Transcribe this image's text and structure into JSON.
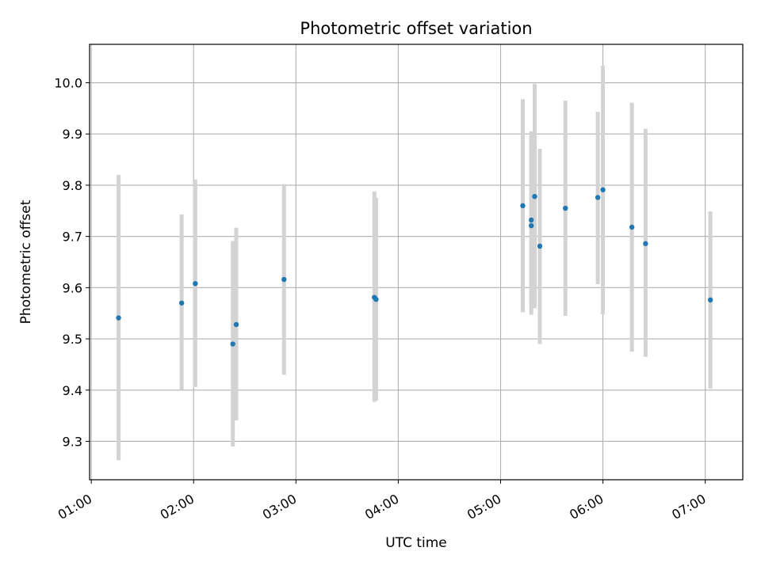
{
  "chart_data": {
    "type": "scatter",
    "title": "Photometric offset variation",
    "xlabel": "UTC time",
    "ylabel": "Photometric offset",
    "x_unit": "UTC time (HH:MM)",
    "xlim": [
      "00:59",
      "07:22"
    ],
    "ylim": [
      9.225,
      10.075
    ],
    "x_ticks": [
      "01:00",
      "02:00",
      "03:00",
      "04:00",
      "05:00",
      "06:00",
      "07:00"
    ],
    "y_ticks": [
      "9.3",
      "9.4",
      "9.5",
      "9.6",
      "9.7",
      "9.8",
      "9.9",
      "10.0"
    ],
    "grid": true,
    "point_color": "#1f77b4",
    "errorbar_color": "#d3d3d3",
    "points": [
      {
        "x": "01:16",
        "y": 9.541,
        "low": 9.263,
        "high": 9.82
      },
      {
        "x": "01:53",
        "y": 9.57,
        "low": 9.401,
        "high": 9.743
      },
      {
        "x": "02:01",
        "y": 9.608,
        "low": 9.406,
        "high": 9.811
      },
      {
        "x": "02:23",
        "y": 9.49,
        "low": 9.29,
        "high": 9.691
      },
      {
        "x": "02:25",
        "y": 9.528,
        "low": 9.341,
        "high": 9.717
      },
      {
        "x": "02:53",
        "y": 9.616,
        "low": 9.43,
        "high": 9.802
      },
      {
        "x": "03:46",
        "y": 9.581,
        "low": 9.377,
        "high": 9.788
      },
      {
        "x": "03:47",
        "y": 9.577,
        "low": 9.38,
        "high": 9.776
      },
      {
        "x": "05:13",
        "y": 9.76,
        "low": 9.552,
        "high": 9.968
      },
      {
        "x": "05:18",
        "y": 9.732,
        "low": 9.56,
        "high": 9.905
      },
      {
        "x": "05:18",
        "y": 9.721,
        "low": 9.547,
        "high": 9.895
      },
      {
        "x": "05:20",
        "y": 9.778,
        "low": 9.56,
        "high": 9.998
      },
      {
        "x": "05:23",
        "y": 9.681,
        "low": 9.49,
        "high": 9.871
      },
      {
        "x": "05:38",
        "y": 9.755,
        "low": 9.545,
        "high": 9.965
      },
      {
        "x": "05:57",
        "y": 9.776,
        "low": 9.607,
        "high": 9.943
      },
      {
        "x": "06:00",
        "y": 9.791,
        "low": 9.548,
        "high": 10.033
      },
      {
        "x": "06:17",
        "y": 9.718,
        "low": 9.475,
        "high": 9.961
      },
      {
        "x": "06:25",
        "y": 9.686,
        "low": 9.465,
        "high": 9.91
      },
      {
        "x": "07:03",
        "y": 9.576,
        "low": 9.403,
        "high": 9.749
      }
    ]
  }
}
